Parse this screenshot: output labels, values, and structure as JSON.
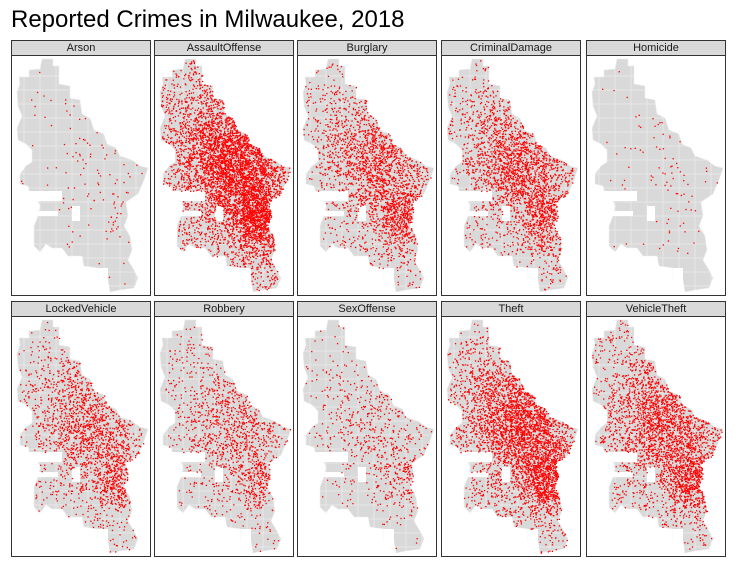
{
  "title": "Reported Crimes in Milwaukee, 2018",
  "colors": {
    "map_fill": "#d9d9d9",
    "map_line": "#ffffff",
    "point": "#ff0000",
    "strip_bg": "#d9d9d9",
    "border": "#333333"
  },
  "panels": [
    {
      "label": "Arson",
      "density": 120
    },
    {
      "label": "AssaultOffense",
      "density": 5200
    },
    {
      "label": "Burglary",
      "density": 2300
    },
    {
      "label": "CriminalDamage",
      "density": 2500
    },
    {
      "label": "Homicide",
      "density": 90
    },
    {
      "label": "LockedVehicle",
      "density": 1900
    },
    {
      "label": "Robbery",
      "density": 1300
    },
    {
      "label": "SexOffense",
      "density": 650
    },
    {
      "label": "Theft",
      "density": 3800
    },
    {
      "label": "VehicleTheft",
      "density": 2900
    }
  ]
}
